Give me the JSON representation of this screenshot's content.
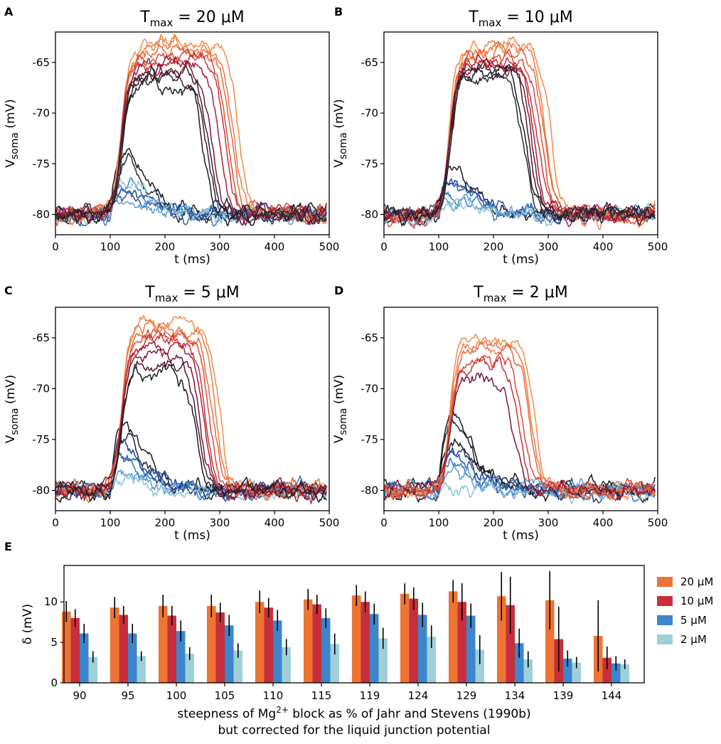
{
  "chart_data": [
    {
      "panel": "A",
      "type": "line",
      "title": {
        "prefix": "T",
        "sub": "max",
        "suffix": " = 20 μM"
      },
      "xlabel": "t (ms)",
      "ylabel": {
        "main": "V",
        "sub": "soma",
        "unit": " (mV)"
      },
      "xlim": [
        0,
        500
      ],
      "ylim": [
        -82,
        -62
      ],
      "xticks": [
        0,
        100,
        200,
        300,
        400,
        500
      ],
      "yticks": [
        -65,
        -70,
        -75,
        -80
      ],
      "plateau_traces": [
        {
          "color": "#f28a4a",
          "peak": -63.0,
          "end": 360
        },
        {
          "color": "#ef7a40",
          "peak": -63.5,
          "end": 350
        },
        {
          "color": "#e86a3a",
          "peak": -64.0,
          "end": 345
        },
        {
          "color": "#d94c3a",
          "peak": -64.5,
          "end": 340
        },
        {
          "color": "#c8323a",
          "peak": -64.8,
          "end": 335
        },
        {
          "color": "#a8203a",
          "peak": -65.2,
          "end": 325
        },
        {
          "color": "#7a1836",
          "peak": -65.8,
          "end": 310
        },
        {
          "color": "#4a1a2e",
          "peak": -66.5,
          "end": 300
        },
        {
          "color": "#1c1c26",
          "peak": -67.0,
          "end": 295
        },
        {
          "color": "#2a2a34",
          "peak": -66.0,
          "end": 305
        }
      ],
      "spike_traces": [
        {
          "color": "#1a1a22",
          "peak": -73.5
        },
        {
          "color": "#2a2a3a",
          "peak": -75.0
        },
        {
          "color": "#1f3f8f",
          "peak": -77.5
        },
        {
          "color": "#2b5aaa",
          "peak": -78.0
        },
        {
          "color": "#3a78c4",
          "peak": -77.0
        },
        {
          "color": "#5aa0d0",
          "peak": -78.5
        },
        {
          "color": "#8cc4d8",
          "peak": -76.5
        }
      ]
    },
    {
      "panel": "B",
      "type": "line",
      "title": {
        "prefix": "T",
        "sub": "max",
        "suffix": " = 10 μM"
      },
      "xlabel": "t (ms)",
      "ylabel": {
        "main": "V",
        "sub": "soma",
        "unit": " (mV)"
      },
      "xlim": [
        0,
        500
      ],
      "ylim": [
        -82,
        -62
      ],
      "xticks": [
        0,
        100,
        200,
        300,
        400,
        500
      ],
      "yticks": [
        -65,
        -70,
        -75,
        -80
      ],
      "plateau_traces": [
        {
          "color": "#f28a4a",
          "peak": -63.2,
          "end": 330
        },
        {
          "color": "#ef7a40",
          "peak": -63.8,
          "end": 320
        },
        {
          "color": "#e86a3a",
          "peak": -64.2,
          "end": 318
        },
        {
          "color": "#d94c3a",
          "peak": -64.5,
          "end": 312
        },
        {
          "color": "#c8323a",
          "peak": -64.8,
          "end": 305
        },
        {
          "color": "#a8203a",
          "peak": -65.0,
          "end": 300
        },
        {
          "color": "#7a1836",
          "peak": -65.3,
          "end": 295
        },
        {
          "color": "#4a1a2e",
          "peak": -65.6,
          "end": 290
        },
        {
          "color": "#1c1c26",
          "peak": -66.0,
          "end": 285
        },
        {
          "color": "#2a2a34",
          "peak": -66.5,
          "end": 280
        }
      ],
      "spike_traces": [
        {
          "color": "#1a1a22",
          "peak": -75.5
        },
        {
          "color": "#1f3f8f",
          "peak": -76.5
        },
        {
          "color": "#2b5aaa",
          "peak": -77.0
        },
        {
          "color": "#3a78c4",
          "peak": -78.0
        },
        {
          "color": "#5aa0d0",
          "peak": -78.5
        },
        {
          "color": "#8cc4d8",
          "peak": -79.0
        }
      ]
    },
    {
      "panel": "C",
      "type": "line",
      "title": {
        "prefix": "T",
        "sub": "max",
        "suffix": " = 5 μM"
      },
      "xlabel": "t (ms)",
      "ylabel": {
        "main": "V",
        "sub": "soma",
        "unit": " (mV)"
      },
      "xlim": [
        0,
        500
      ],
      "ylim": [
        -82,
        -62
      ],
      "xticks": [
        0,
        100,
        200,
        300,
        400,
        500
      ],
      "yticks": [
        -65,
        -70,
        -75,
        -80
      ],
      "plateau_traces": [
        {
          "color": "#f28a4a",
          "peak": -63.5,
          "end": 325
        },
        {
          "color": "#ef7a40",
          "peak": -64.0,
          "end": 318
        },
        {
          "color": "#e86a3a",
          "peak": -64.3,
          "end": 312
        },
        {
          "color": "#d94c3a",
          "peak": -64.8,
          "end": 305
        },
        {
          "color": "#c8323a",
          "peak": -65.2,
          "end": 300
        },
        {
          "color": "#a8203a",
          "peak": -65.8,
          "end": 295
        },
        {
          "color": "#7a1836",
          "peak": -66.5,
          "end": 290
        },
        {
          "color": "#4a1a2e",
          "peak": -67.5,
          "end": 285
        },
        {
          "color": "#1c1c26",
          "peak": -68.2,
          "end": 280
        }
      ],
      "spike_traces": [
        {
          "color": "#1a1a22",
          "peak": -73.5
        },
        {
          "color": "#2a2a3a",
          "peak": -75.0
        },
        {
          "color": "#1f3f8f",
          "peak": -75.5
        },
        {
          "color": "#2b5aaa",
          "peak": -76.0
        },
        {
          "color": "#3a78c4",
          "peak": -77.0
        },
        {
          "color": "#5aa0d0",
          "peak": -78.0
        },
        {
          "color": "#8cc4d8",
          "peak": -79.0
        }
      ]
    },
    {
      "panel": "D",
      "type": "line",
      "title": {
        "prefix": "T",
        "sub": "max",
        "suffix": " = 2 μM"
      },
      "xlabel": "t (ms)",
      "ylabel": {
        "main": "V",
        "sub": "soma",
        "unit": " (mV)"
      },
      "xlim": [
        0,
        500
      ],
      "ylim": [
        -82,
        -62
      ],
      "xticks": [
        0,
        100,
        200,
        300,
        400,
        500
      ],
      "yticks": [
        -65,
        -70,
        -75,
        -80
      ],
      "plateau_traces": [
        {
          "color": "#f28a4a",
          "peak": -65.2,
          "end": 300
        },
        {
          "color": "#ef7a40",
          "peak": -65.6,
          "end": 295
        },
        {
          "color": "#e86a3a",
          "peak": -66.0,
          "end": 290
        },
        {
          "color": "#d94c3a",
          "peak": -67.0,
          "end": 280
        },
        {
          "color": "#c8323a",
          "peak": -67.5,
          "end": 270
        },
        {
          "color": "#7a1836",
          "peak": -68.5,
          "end": 262
        }
      ],
      "spike_traces": [
        {
          "color": "#1a1a22",
          "peak": -72.5
        },
        {
          "color": "#2a2a3a",
          "peak": -73.5
        },
        {
          "color": "#1c1c26",
          "peak": -75.0
        },
        {
          "color": "#1f3f8f",
          "peak": -76.0
        },
        {
          "color": "#2b5aaa",
          "peak": -76.5
        },
        {
          "color": "#3a78c4",
          "peak": -77.5
        },
        {
          "color": "#5aa0d0",
          "peak": -78.0
        },
        {
          "color": "#8cc4d8",
          "peak": -79.5
        }
      ]
    },
    {
      "panel": "E",
      "type": "bar",
      "categories": [
        "90",
        "95",
        "100",
        "105",
        "110",
        "115",
        "119",
        "124",
        "129",
        "134",
        "139",
        "144"
      ],
      "xlabel_line1_pre": "steepness of Mg",
      "xlabel_line1_sup": "2+",
      "xlabel_line1_post": " block as % of Jahr and Stevens (1990b)",
      "xlabel_line2": "but corrected for the liquid junction potential",
      "ylabel": "δ (mV)",
      "ylim": [
        0,
        14.5
      ],
      "yticks": [
        0,
        5,
        10
      ],
      "legend_position": "right",
      "series": [
        {
          "name": "20 μM",
          "color": "#ee7433",
          "values": [
            8.8,
            9.3,
            9.5,
            9.5,
            10.0,
            10.3,
            10.8,
            11.0,
            11.3,
            10.7,
            10.2,
            5.8
          ],
          "errors": [
            1.3,
            1.3,
            1.4,
            1.4,
            1.4,
            1.3,
            1.3,
            1.3,
            1.4,
            3.0,
            3.6,
            4.4
          ]
        },
        {
          "name": "10 μM",
          "color": "#c62f3b",
          "values": [
            8.0,
            8.4,
            8.3,
            8.7,
            9.3,
            9.7,
            10.0,
            10.4,
            10.0,
            9.6,
            5.4,
            3.1
          ],
          "errors": [
            1.1,
            1.1,
            1.2,
            1.2,
            1.2,
            1.2,
            1.3,
            1.4,
            2.3,
            3.5,
            4.0,
            1.4
          ]
        },
        {
          "name": "5 μM",
          "color": "#3b86cc",
          "values": [
            6.1,
            6.1,
            6.4,
            7.1,
            7.7,
            8.0,
            8.5,
            8.4,
            8.3,
            4.9,
            3.0,
            2.4
          ],
          "errors": [
            1.2,
            1.2,
            1.3,
            1.3,
            1.3,
            1.2,
            1.3,
            1.5,
            1.5,
            1.8,
            1.0,
            0.9
          ]
        },
        {
          "name": "2 μM",
          "color": "#9fd0d8",
          "values": [
            3.2,
            3.3,
            3.6,
            4.0,
            4.4,
            4.8,
            5.5,
            5.7,
            4.1,
            2.9,
            2.5,
            2.3
          ],
          "errors": [
            0.7,
            0.6,
            0.8,
            0.9,
            1.0,
            1.3,
            1.3,
            1.4,
            1.8,
            1.0,
            0.7,
            0.6
          ]
        }
      ]
    }
  ]
}
